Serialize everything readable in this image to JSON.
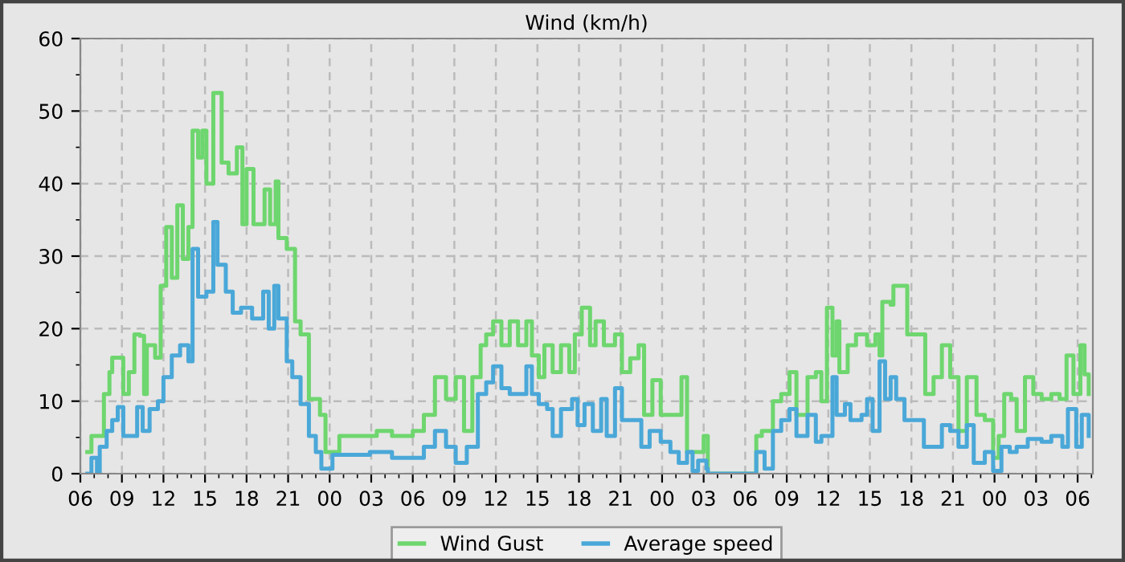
{
  "chart_data": {
    "type": "step",
    "title": "Wind (km/h)",
    "xlim": [
      6,
      79.1
    ],
    "ylim": [
      0,
      60
    ],
    "xticks": [
      {
        "value": 6,
        "label": "06"
      },
      {
        "value": 7,
        "label": null
      },
      {
        "value": 8,
        "label": null
      },
      {
        "value": 9,
        "label": "09"
      },
      {
        "value": 10,
        "label": null
      },
      {
        "value": 11,
        "label": null
      },
      {
        "value": 12,
        "label": "12"
      },
      {
        "value": 13,
        "label": null
      },
      {
        "value": 14,
        "label": null
      },
      {
        "value": 15,
        "label": "15"
      },
      {
        "value": 16,
        "label": null
      },
      {
        "value": 17,
        "label": null
      },
      {
        "value": 18,
        "label": "18"
      },
      {
        "value": 19,
        "label": null
      },
      {
        "value": 20,
        "label": null
      },
      {
        "value": 21,
        "label": "21"
      },
      {
        "value": 22,
        "label": null
      },
      {
        "value": 23,
        "label": null
      },
      {
        "value": 24,
        "label": "00"
      },
      {
        "value": 25,
        "label": null
      },
      {
        "value": 26,
        "label": null
      },
      {
        "value": 27,
        "label": "03"
      },
      {
        "value": 28,
        "label": null
      },
      {
        "value": 29,
        "label": null
      },
      {
        "value": 30,
        "label": "06"
      },
      {
        "value": 31,
        "label": null
      },
      {
        "value": 32,
        "label": null
      },
      {
        "value": 33,
        "label": "09"
      },
      {
        "value": 34,
        "label": null
      },
      {
        "value": 35,
        "label": null
      },
      {
        "value": 36,
        "label": "12"
      },
      {
        "value": 37,
        "label": null
      },
      {
        "value": 38,
        "label": null
      },
      {
        "value": 39,
        "label": "15"
      },
      {
        "value": 40,
        "label": null
      },
      {
        "value": 41,
        "label": null
      },
      {
        "value": 42,
        "label": "18"
      },
      {
        "value": 43,
        "label": null
      },
      {
        "value": 44,
        "label": null
      },
      {
        "value": 45,
        "label": "21"
      },
      {
        "value": 46,
        "label": null
      },
      {
        "value": 47,
        "label": null
      },
      {
        "value": 48,
        "label": "00"
      },
      {
        "value": 49,
        "label": null
      },
      {
        "value": 50,
        "label": null
      },
      {
        "value": 51,
        "label": "03"
      },
      {
        "value": 52,
        "label": null
      },
      {
        "value": 53,
        "label": null
      },
      {
        "value": 54,
        "label": "06"
      },
      {
        "value": 55,
        "label": null
      },
      {
        "value": 56,
        "label": null
      },
      {
        "value": 57,
        "label": "09"
      },
      {
        "value": 58,
        "label": null
      },
      {
        "value": 59,
        "label": null
      },
      {
        "value": 60,
        "label": "12"
      },
      {
        "value": 61,
        "label": null
      },
      {
        "value": 62,
        "label": null
      },
      {
        "value": 63,
        "label": "15"
      },
      {
        "value": 64,
        "label": null
      },
      {
        "value": 65,
        "label": null
      },
      {
        "value": 66,
        "label": "18"
      },
      {
        "value": 67,
        "label": null
      },
      {
        "value": 68,
        "label": null
      },
      {
        "value": 69,
        "label": "21"
      },
      {
        "value": 70,
        "label": null
      },
      {
        "value": 71,
        "label": null
      },
      {
        "value": 72,
        "label": "00"
      },
      {
        "value": 73,
        "label": null
      },
      {
        "value": 74,
        "label": null
      },
      {
        "value": 75,
        "label": "03"
      },
      {
        "value": 76,
        "label": null
      },
      {
        "value": 77,
        "label": null
      },
      {
        "value": 78,
        "label": "06"
      },
      {
        "value": 79,
        "label": null
      }
    ],
    "yticks": [
      0,
      {
        "value": 5,
        "label": null
      },
      10,
      {
        "value": 15,
        "label": null
      },
      20,
      {
        "value": 25,
        "label": null
      },
      30,
      {
        "value": 35,
        "label": null
      },
      40,
      {
        "value": 45,
        "label": null
      },
      50,
      {
        "value": 55,
        "label": null
      },
      60
    ],
    "grid": true,
    "legend": "bottom",
    "line_style": "solid",
    "marker": "none",
    "series": [
      {
        "name": "Wind Gust",
        "color": "#6ed66e",
        "x": [
          6.5,
          6.8,
          7.7,
          8.1,
          8.3,
          9.0,
          9.1,
          9.5,
          9.9,
          10.3,
          10.6,
          10.8,
          11.4,
          11.8,
          12.2,
          12.6,
          13.0,
          13.4,
          13.8,
          14.1,
          14.5,
          14.8,
          15.1,
          15.6,
          16.1,
          16.2,
          16.7,
          17.3,
          17.7,
          18.0,
          18.5,
          19.3,
          19.7,
          20.1,
          20.3,
          20.9,
          21.5,
          21.9,
          22.5,
          23.3,
          23.7,
          24.7,
          26.8,
          27.4,
          28.5,
          30.0,
          30.8,
          31.6,
          32.4,
          33.1,
          33.7,
          34.3,
          34.9,
          35.3,
          35.8,
          36.4,
          37.0,
          37.6,
          38.2,
          38.6,
          39.1,
          39.5,
          40.1,
          40.7,
          41.3,
          41.7,
          42.2,
          42.8,
          43.2,
          43.8,
          44.6,
          45.1,
          45.7,
          46.3,
          46.7,
          47.3,
          47.9,
          48.6,
          49.4,
          49.8,
          50.4,
          51.0,
          51.3,
          54.6,
          54.8,
          55.2,
          56.0,
          56.6,
          57.2,
          57.7,
          58.5,
          59.1,
          59.5,
          59.9,
          60.3,
          60.6,
          60.8,
          61.4,
          62.0,
          62.8,
          63.4,
          63.7,
          63.9,
          64.5,
          64.7,
          65.5,
          65.7,
          66.5,
          67.0,
          67.6,
          68.2,
          68.8,
          69.4,
          70.0,
          70.7,
          71.3,
          71.9,
          72.3,
          72.7,
          73.2,
          73.6,
          74.2,
          74.8,
          75.4,
          76.1,
          76.7,
          77.2,
          77.7,
          78.2,
          78.5,
          78.8
        ],
        "values": [
          3.0,
          5.2,
          11,
          14,
          16,
          16,
          11,
          14,
          19.2,
          19,
          11,
          17.7,
          16,
          25.9,
          34,
          27,
          37,
          29.6,
          34,
          47.3,
          43.6,
          47.3,
          40,
          52.5,
          52.5,
          42.9,
          41.4,
          45,
          34.4,
          42,
          34.4,
          39.2,
          34.4,
          40.3,
          32.5,
          31,
          21,
          19.2,
          10.3,
          8.1,
          3,
          5.2,
          5.2,
          5.9,
          5.2,
          5.9,
          8.1,
          13.3,
          10.3,
          13.3,
          5.9,
          13.3,
          17.7,
          19.2,
          21,
          17.7,
          21,
          17.7,
          21,
          16.3,
          13.3,
          17.7,
          14,
          17.7,
          14,
          19.2,
          22.9,
          17.7,
          21,
          17.7,
          19.2,
          14,
          15.9,
          17.7,
          8.1,
          12.9,
          8.1,
          8.1,
          13.3,
          3,
          3,
          5.2,
          0,
          0,
          5.2,
          5.9,
          10,
          11,
          14,
          8.1,
          13.3,
          14,
          10,
          22.9,
          16.3,
          21,
          14,
          17.7,
          19.2,
          17.7,
          19.2,
          16.3,
          23.7,
          23.3,
          25.9,
          25.9,
          19.2,
          19.2,
          11,
          13.3,
          17.7,
          13.3,
          5.9,
          13.3,
          8.1,
          7.4,
          2.2,
          5.2,
          11,
          10.3,
          5.9,
          13.3,
          11,
          10.3,
          11,
          10.3,
          16.3,
          11,
          17.7,
          13.7,
          11
        ]
      },
      {
        "name": "Average speed",
        "color": "#4aa8d8",
        "x": [
          6.5,
          6.8,
          7.2,
          7.4,
          7.9,
          8.3,
          8.7,
          9.1,
          9.7,
          10.1,
          10.5,
          11.0,
          11.6,
          12.0,
          12.6,
          13.2,
          13.8,
          14.1,
          14.5,
          15.1,
          15.6,
          15.9,
          16.5,
          17.0,
          17.6,
          18.4,
          19.2,
          19.6,
          20.0,
          20.3,
          20.9,
          21.3,
          21.9,
          22.5,
          23.0,
          23.4,
          24.2,
          26.9,
          28.5,
          30.2,
          30.8,
          31.6,
          32.4,
          33.1,
          33.9,
          34.7,
          35.3,
          35.8,
          36.4,
          37.0,
          37.6,
          38.2,
          38.6,
          39.1,
          39.7,
          40.1,
          40.7,
          41.5,
          41.9,
          42.4,
          43.0,
          43.6,
          44.0,
          44.6,
          45.1,
          45.9,
          46.5,
          47.1,
          47.9,
          48.6,
          49.2,
          49.8,
          50.2,
          50.6,
          51.2,
          51.3,
          54.6,
          54.8,
          55.4,
          56.0,
          56.6,
          57.2,
          57.7,
          58.5,
          59.1,
          59.5,
          60.3,
          60.6,
          61.2,
          61.6,
          62.4,
          62.8,
          63.2,
          63.7,
          64.1,
          64.5,
          64.9,
          65.5,
          66.1,
          66.9,
          67.6,
          68.2,
          68.8,
          69.4,
          70.0,
          70.5,
          71.3,
          71.9,
          72.5,
          73.1,
          73.6,
          74.4,
          75.4,
          76.1,
          76.9,
          77.3,
          77.9,
          78.3,
          78.8
        ],
        "values": [
          0,
          2.2,
          0,
          3.7,
          5.9,
          7.4,
          9.2,
          5.2,
          5.2,
          9.2,
          5.9,
          8.9,
          10,
          13.3,
          16.3,
          17.7,
          15.5,
          31,
          24.4,
          25.1,
          34.7,
          28.8,
          25.1,
          22.2,
          22.9,
          21.4,
          25.1,
          20,
          25.9,
          21.4,
          15.5,
          13.3,
          9.6,
          5.2,
          3,
          0.7,
          2.6,
          3,
          2.2,
          2.2,
          3.7,
          5.9,
          3.7,
          1.5,
          3.7,
          11,
          12.6,
          14.8,
          11.8,
          11,
          11,
          14.8,
          11,
          9.6,
          8.9,
          5.2,
          8.9,
          10.3,
          6.7,
          9.6,
          5.9,
          10.3,
          5.2,
          11.8,
          7.4,
          7.4,
          3.7,
          5.9,
          4.4,
          3,
          1.5,
          3,
          0.4,
          1.8,
          0.7,
          0,
          0,
          3,
          0.7,
          5.9,
          7.4,
          8.9,
          5.2,
          8.1,
          4.4,
          5.2,
          13.3,
          8.1,
          9.6,
          7.4,
          8.1,
          10.3,
          5.9,
          15.5,
          10.3,
          13.3,
          10.3,
          7.4,
          7.4,
          3.7,
          3.7,
          6.7,
          5.9,
          3.7,
          6.7,
          1.5,
          3,
          0.4,
          3.7,
          3,
          3.7,
          4.8,
          4.4,
          5.2,
          3.7,
          8.9,
          3.7,
          8.1,
          5.2
        ]
      }
    ]
  }
}
